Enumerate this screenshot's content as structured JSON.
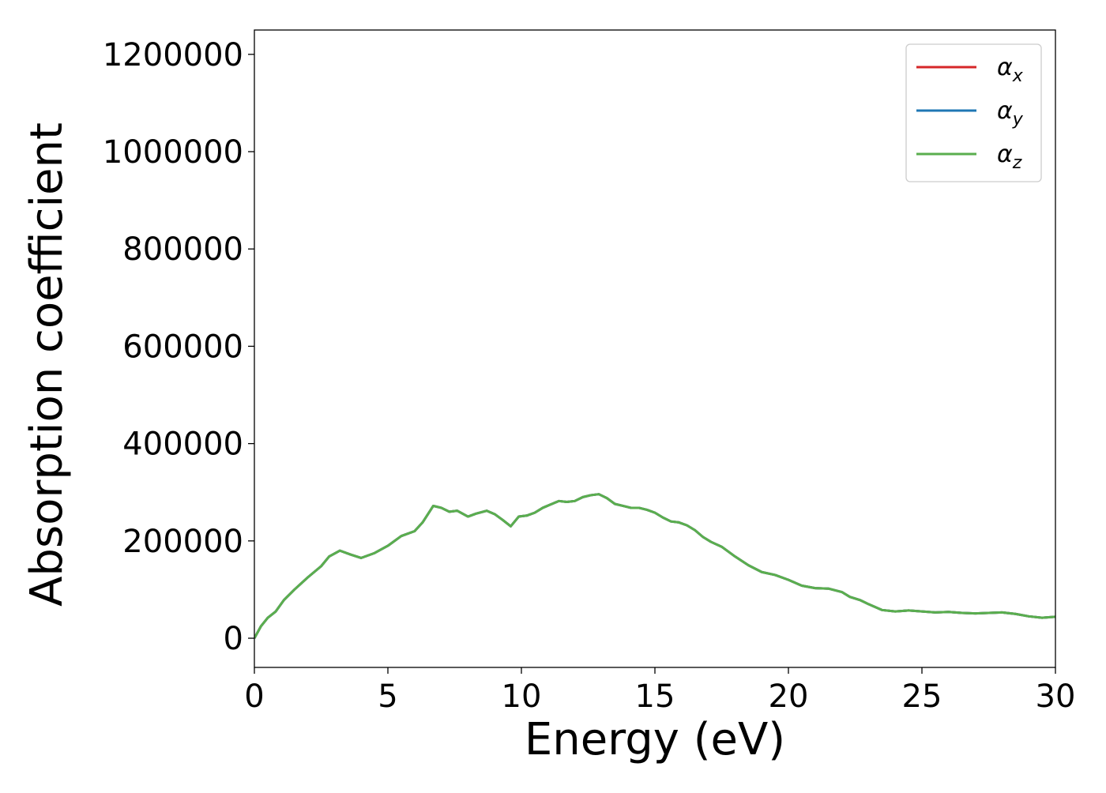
{
  "chart_data": {
    "type": "line",
    "title": "",
    "xlabel": "Energy (eV)",
    "ylabel": "Absorption coefficient",
    "xlim": [
      0,
      30
    ],
    "ylim": [
      -60000,
      1250000
    ],
    "xticks": [
      0,
      5,
      10,
      15,
      20,
      25,
      30
    ],
    "yticks": [
      0,
      200000,
      400000,
      600000,
      800000,
      1000000,
      1200000
    ],
    "grid": false,
    "legend_position": "top-right",
    "series": [
      {
        "name": "α",
        "subscript": "x",
        "color": "#d62728",
        "x": [
          0,
          0.25,
          0.5,
          0.8,
          1.1,
          1.5,
          2.0,
          2.5,
          2.8,
          3.2,
          3.6,
          4.0,
          4.5,
          5.0,
          5.5,
          6.0,
          6.3,
          6.7,
          7.0,
          7.3,
          7.6,
          8.0,
          8.3,
          8.7,
          9.0,
          9.3,
          9.6,
          9.9,
          10.2,
          10.5,
          10.8,
          11.1,
          11.4,
          11.7,
          12.0,
          12.3,
          12.6,
          12.9,
          13.2,
          13.5,
          13.8,
          14.1,
          14.4,
          14.7,
          15.0,
          15.3,
          15.6,
          15.9,
          16.2,
          16.5,
          16.8,
          17.1,
          17.5,
          18.0,
          18.5,
          19.0,
          19.5,
          20.0,
          20.5,
          21.0,
          21.5,
          22.0,
          22.3,
          22.7,
          23.0,
          23.5,
          24.0,
          24.5,
          25.0,
          25.5,
          26.0,
          26.5,
          27.0,
          27.5,
          28.0,
          28.5,
          29.0,
          29.5,
          30.0
        ],
        "values": [
          0,
          25000,
          42000,
          55000,
          78000,
          100000,
          125000,
          148000,
          168000,
          180000,
          172000,
          165000,
          175000,
          190000,
          210000,
          220000,
          238000,
          272000,
          268000,
          260000,
          262000,
          250000,
          256000,
          262000,
          255000,
          243000,
          230000,
          250000,
          252000,
          258000,
          268000,
          275000,
          282000,
          280000,
          282000,
          290000,
          294000,
          296000,
          288000,
          276000,
          272000,
          268000,
          268000,
          264000,
          258000,
          248000,
          240000,
          238000,
          232000,
          222000,
          208000,
          198000,
          188000,
          168000,
          150000,
          136000,
          130000,
          120000,
          108000,
          103000,
          102000,
          95000,
          85000,
          78000,
          70000,
          58000,
          55000,
          57000,
          55000,
          53000,
          54000,
          52000,
          51000,
          52000,
          53000,
          50000,
          45000,
          42000,
          44000
        ]
      },
      {
        "name": "α",
        "subscript": "y",
        "color": "#1f77b4",
        "x": [
          0,
          0.25,
          0.5,
          0.8,
          1.1,
          1.5,
          2.0,
          2.5,
          2.8,
          3.2,
          3.6,
          4.0,
          4.5,
          5.0,
          5.5,
          6.0,
          6.3,
          6.7,
          7.0,
          7.3,
          7.6,
          8.0,
          8.3,
          8.7,
          9.0,
          9.3,
          9.6,
          9.9,
          10.2,
          10.5,
          10.8,
          11.1,
          11.4,
          11.7,
          12.0,
          12.3,
          12.6,
          12.9,
          13.2,
          13.5,
          13.8,
          14.1,
          14.4,
          14.7,
          15.0,
          15.3,
          15.6,
          15.9,
          16.2,
          16.5,
          16.8,
          17.1,
          17.5,
          18.0,
          18.5,
          19.0,
          19.5,
          20.0,
          20.5,
          21.0,
          21.5,
          22.0,
          22.3,
          22.7,
          23.0,
          23.5,
          24.0,
          24.5,
          25.0,
          25.5,
          26.0,
          26.5,
          27.0,
          27.5,
          28.0,
          28.5,
          29.0,
          29.5,
          30.0
        ],
        "values": [
          0,
          25000,
          42000,
          55000,
          78000,
          100000,
          125000,
          148000,
          168000,
          180000,
          172000,
          165000,
          175000,
          190000,
          210000,
          220000,
          238000,
          272000,
          268000,
          260000,
          262000,
          250000,
          256000,
          262000,
          255000,
          243000,
          230000,
          250000,
          252000,
          258000,
          268000,
          275000,
          282000,
          280000,
          282000,
          290000,
          294000,
          296000,
          288000,
          276000,
          272000,
          268000,
          268000,
          264000,
          258000,
          248000,
          240000,
          238000,
          232000,
          222000,
          208000,
          198000,
          188000,
          168000,
          150000,
          136000,
          130000,
          120000,
          108000,
          103000,
          102000,
          95000,
          85000,
          78000,
          70000,
          58000,
          55000,
          57000,
          55000,
          53000,
          54000,
          52000,
          51000,
          52000,
          53000,
          50000,
          45000,
          42000,
          44000
        ]
      },
      {
        "name": "α",
        "subscript": "z",
        "color": "#5aae4e",
        "x": [
          0,
          0.25,
          0.5,
          0.8,
          1.1,
          1.5,
          2.0,
          2.5,
          2.8,
          3.2,
          3.6,
          4.0,
          4.5,
          5.0,
          5.5,
          6.0,
          6.3,
          6.7,
          7.0,
          7.3,
          7.6,
          8.0,
          8.3,
          8.7,
          9.0,
          9.3,
          9.6,
          9.9,
          10.2,
          10.5,
          10.8,
          11.1,
          11.4,
          11.7,
          12.0,
          12.3,
          12.6,
          12.9,
          13.2,
          13.5,
          13.8,
          14.1,
          14.4,
          14.7,
          15.0,
          15.3,
          15.6,
          15.9,
          16.2,
          16.5,
          16.8,
          17.1,
          17.5,
          18.0,
          18.5,
          19.0,
          19.5,
          20.0,
          20.5,
          21.0,
          21.5,
          22.0,
          22.3,
          22.7,
          23.0,
          23.5,
          24.0,
          24.5,
          25.0,
          25.5,
          26.0,
          26.5,
          27.0,
          27.5,
          28.0,
          28.5,
          29.0,
          29.5,
          30.0
        ],
        "values": [
          0,
          25000,
          42000,
          55000,
          78000,
          100000,
          125000,
          148000,
          168000,
          180000,
          172000,
          165000,
          175000,
          190000,
          210000,
          220000,
          238000,
          272000,
          268000,
          260000,
          262000,
          250000,
          256000,
          262000,
          255000,
          243000,
          230000,
          250000,
          252000,
          258000,
          268000,
          275000,
          282000,
          280000,
          282000,
          290000,
          294000,
          296000,
          288000,
          276000,
          272000,
          268000,
          268000,
          264000,
          258000,
          248000,
          240000,
          238000,
          232000,
          222000,
          208000,
          198000,
          188000,
          168000,
          150000,
          136000,
          130000,
          120000,
          108000,
          103000,
          102000,
          95000,
          85000,
          78000,
          70000,
          58000,
          55000,
          57000,
          55000,
          53000,
          54000,
          52000,
          51000,
          52000,
          53000,
          50000,
          45000,
          42000,
          44000
        ]
      }
    ]
  }
}
